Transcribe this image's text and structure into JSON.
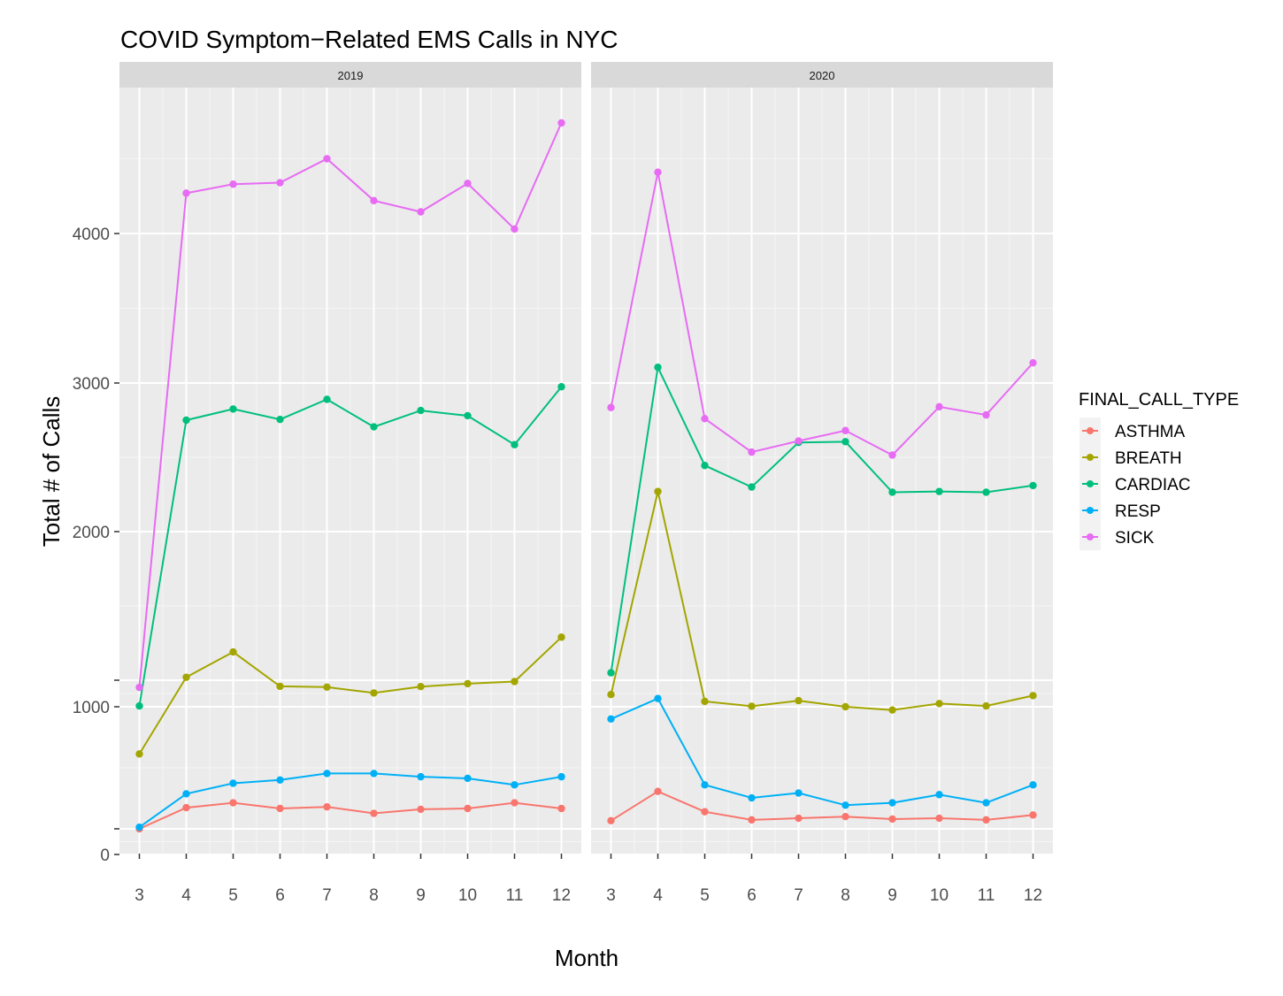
{
  "chart_data": {
    "type": "line",
    "title": "COVID Symptom−Related EMS Calls in NYC",
    "xlabel": "Month",
    "ylabel": "Total # of Calls",
    "facet_variable": "year",
    "panels": [
      "2019",
      "2020"
    ],
    "x": [
      3,
      4,
      5,
      6,
      7,
      8,
      9,
      10,
      11,
      12
    ],
    "x_tick_labels": [
      "3",
      "4",
      "5",
      "6",
      "7",
      "8",
      "9",
      "10",
      "11",
      "12"
    ],
    "y_ticks": [
      {
        "value": 0,
        "label": "0"
      },
      {
        "value": 250,
        "label": ""
      },
      {
        "value": 1000,
        "label": "1000"
      },
      {
        "value": 1500,
        "label": ""
      },
      {
        "value": 2000,
        "label": "2000"
      },
      {
        "value": 3000,
        "label": "3000"
      },
      {
        "value": 4000,
        "label": "4000"
      }
    ],
    "grid": true,
    "legend": {
      "title": "FINAL_CALL_TYPE",
      "position": "right"
    },
    "series": [
      {
        "name": "ASTHMA",
        "color": "#F8766D",
        "panels": {
          "2019": [
            250,
            380,
            410,
            375,
            385,
            345,
            370,
            375,
            410,
            375
          ],
          "2020": [
            300,
            480,
            355,
            305,
            315,
            325,
            310,
            315,
            305,
            335
          ]
        }
      },
      {
        "name": "BREATH",
        "color": "#A3A500",
        "panels": {
          "2019": [
            710,
            1510,
            1595,
            1385,
            1370,
            1260,
            1380,
            1435,
            1475,
            1645
          ],
          "2020": [
            1230,
            2270,
            1100,
            1010,
            1115,
            1000,
            980,
            1060,
            1015,
            1210
          ]
        }
      },
      {
        "name": "CARDIAC",
        "color": "#00BF7D",
        "panels": {
          "2019": [
            1015,
            2750,
            2825,
            2755,
            2890,
            2705,
            2815,
            2780,
            2585,
            2975
          ],
          "2020": [
            1525,
            3105,
            2445,
            2300,
            2600,
            2605,
            2265,
            2270,
            2265,
            2310
          ]
        }
      },
      {
        "name": "RESP",
        "color": "#00B0F6",
        "panels": {
          "2019": [
            260,
            465,
            530,
            550,
            590,
            590,
            570,
            560,
            520,
            570
          ],
          "2020": [
            925,
            1155,
            520,
            440,
            470,
            395,
            410,
            460,
            410,
            520
          ]
        }
      },
      {
        "name": "SICK",
        "color": "#E76BF3",
        "panels": {
          "2019": [
            1365,
            4270,
            4330,
            4340,
            4500,
            4220,
            4145,
            4335,
            4030,
            4740
          ],
          "2020": [
            2835,
            4410,
            2760,
            2535,
            2610,
            2680,
            2515,
            2840,
            2785,
            3135
          ]
        }
      }
    ]
  }
}
